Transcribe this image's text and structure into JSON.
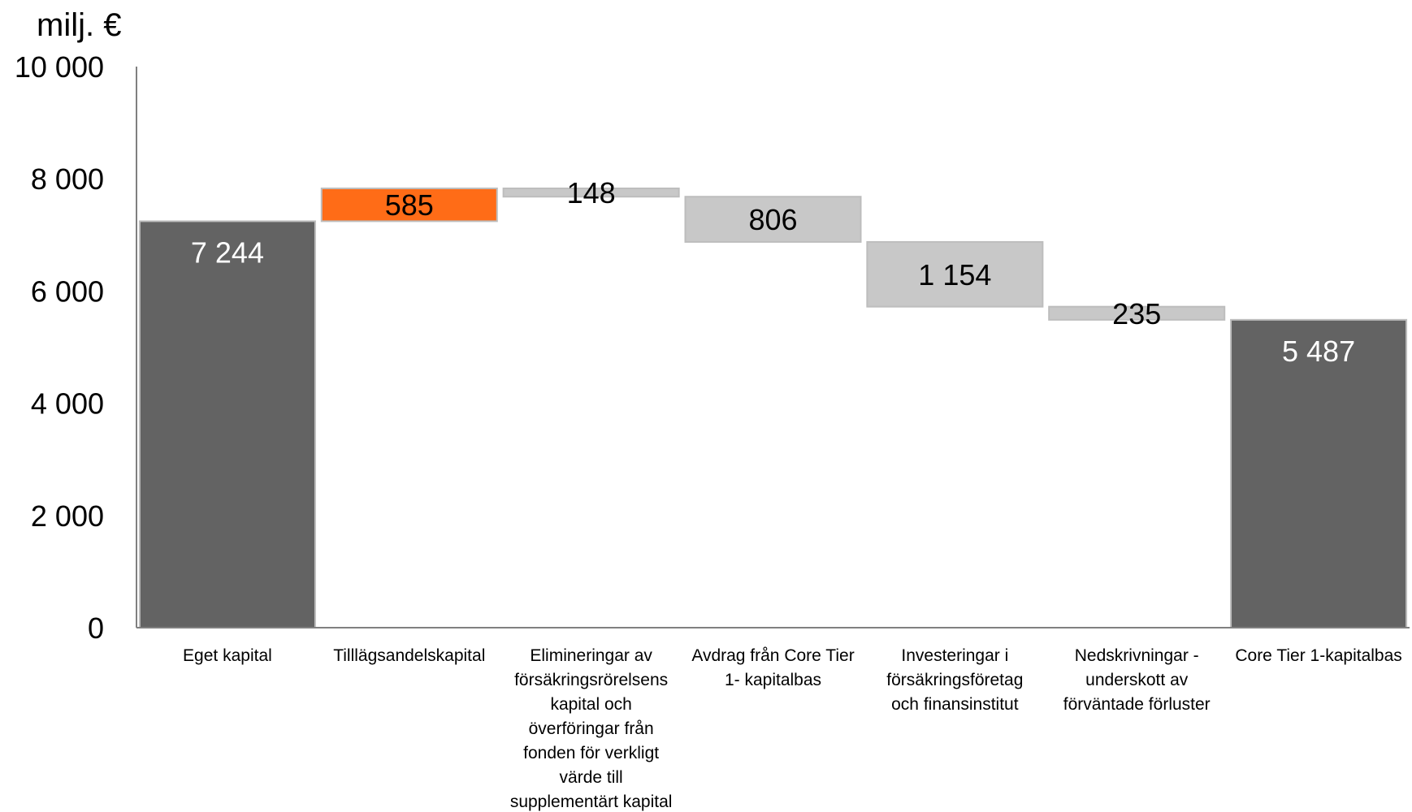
{
  "chart_data": {
    "type": "waterfall",
    "ylabel": "milj. €",
    "ylim": [
      0,
      10000
    ],
    "yticks": [
      0,
      2000,
      4000,
      6000,
      8000,
      10000
    ],
    "ytick_labels": [
      "0",
      "2 000",
      "4 000",
      "6 000",
      "8 000",
      "10 000"
    ],
    "grid": false,
    "colors": {
      "total": "#636363",
      "increase": "#ff6c17",
      "decrease": "#c8c8c8",
      "bar_border": "#bdbdbd",
      "axis": "#808080"
    },
    "bars": [
      {
        "category": "Eget kapital",
        "kind": "total",
        "base": 0,
        "top": 7244,
        "label": "7 244"
      },
      {
        "category": "Tilllägsandelskapital",
        "kind": "increase",
        "base": 7244,
        "top": 7829,
        "label": "585"
      },
      {
        "category": "Elimineringar av försäkringsrörelsens kapital och överföringar från fonden för verkligt värde till supplementärt kapital",
        "kind": "decrease",
        "base": 7681,
        "top": 7829,
        "label": "148"
      },
      {
        "category": "Avdrag från Core Tier 1- kapitalbas",
        "kind": "decrease",
        "base": 6875,
        "top": 7681,
        "label": "806"
      },
      {
        "category": "Investeringar i försäkringsföretag och finansinstitut",
        "kind": "decrease",
        "base": 5721,
        "top": 6875,
        "label": "1 154"
      },
      {
        "category": "Nedskrivningar - underskott av förväntade förluster",
        "kind": "decrease",
        "base": 5487,
        "top": 5721,
        "label": "235"
      },
      {
        "category": "Core Tier 1-kapitalbas",
        "kind": "total",
        "base": 0,
        "top": 5487,
        "label": "5 487"
      }
    ],
    "category_lines": [
      [
        "Eget kapital"
      ],
      [
        "Tilllägsandelskapital"
      ],
      [
        "Elimineringar av",
        "försäkringsrörelsens",
        "kapital och",
        "överföringar från",
        "fonden för verkligt",
        "värde till",
        "supplementärt kapital"
      ],
      [
        "Avdrag från Core Tier",
        "1- kapitalbas"
      ],
      [
        "Investeringar i",
        "försäkringsföretag",
        "och finansinstitut"
      ],
      [
        "Nedskrivningar -",
        "underskott av",
        "förväntade förluster"
      ],
      [
        "Core Tier 1-kapitalbas"
      ]
    ]
  }
}
